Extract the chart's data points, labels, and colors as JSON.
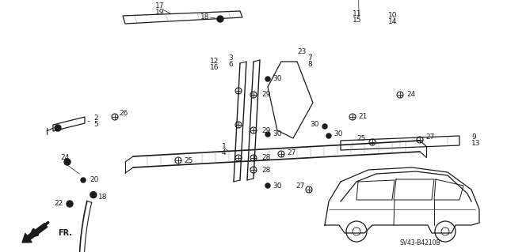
{
  "bg_color": "#ffffff",
  "line_color": "#1a1a1a",
  "fig_width": 6.4,
  "fig_height": 3.19,
  "dpi": 100,
  "diagram_code": "SV43-B4210B"
}
